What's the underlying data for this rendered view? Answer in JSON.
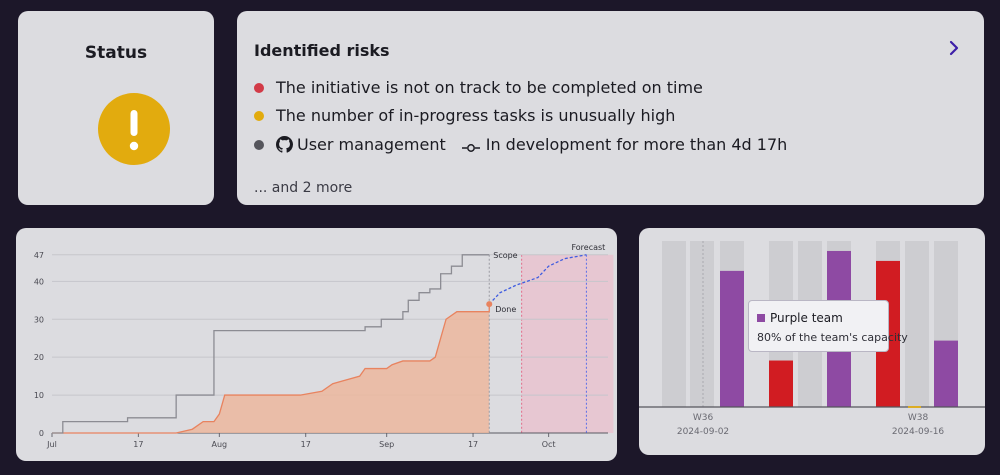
{
  "status": {
    "title": "Status",
    "icon": "warning-exclamation-icon",
    "icon_color": "#e2ab0e"
  },
  "risks": {
    "title": "Identified risks",
    "items": [
      {
        "text": "The initiative is not on track to be completed on time",
        "dot_color": "#d23a47"
      },
      {
        "text": "The number of in-progress tasks is unusually high",
        "dot_color": "#e2ab0e"
      },
      {
        "dot_color": "#55555c",
        "repo_icon": "github-icon",
        "name": "User management",
        "commit_icon": "commit-icon",
        "detail": "In development for more than 4d 17h"
      }
    ],
    "more": "... and 2 more"
  },
  "burnup": {
    "chart_data": {
      "type": "line",
      "x_tick_labels": [
        "Jul",
        "17",
        "Aug",
        "17",
        "Sep",
        "17",
        "Oct"
      ],
      "y_ticks": [
        0,
        10,
        20,
        30,
        40,
        47
      ],
      "ylim": [
        0,
        48
      ],
      "x_range": [
        "2024-07-01",
        "2024-10-12"
      ],
      "series": [
        {
          "name": "Scope",
          "color": "#8c8c93",
          "points": [
            [
              "2024-07-01",
              0
            ],
            [
              "2024-07-03",
              0
            ],
            [
              "2024-07-03",
              3
            ],
            [
              "2024-07-10",
              3
            ],
            [
              "2024-07-10",
              3
            ],
            [
              "2024-07-15",
              3
            ],
            [
              "2024-07-15",
              4
            ],
            [
              "2024-07-22",
              4
            ],
            [
              "2024-07-22",
              4
            ],
            [
              "2024-07-24",
              4
            ],
            [
              "2024-07-24",
              10
            ],
            [
              "2024-07-29",
              10
            ],
            [
              "2024-07-29",
              10
            ],
            [
              "2024-07-31",
              10
            ],
            [
              "2024-07-31",
              27
            ],
            [
              "2024-08-16",
              27
            ],
            [
              "2024-08-16",
              27
            ],
            [
              "2024-08-28",
              27
            ],
            [
              "2024-08-28",
              28
            ],
            [
              "2024-08-31",
              28
            ],
            [
              "2024-08-31",
              30
            ],
            [
              "2024-09-04",
              30
            ],
            [
              "2024-09-04",
              32
            ],
            [
              "2024-09-05",
              32
            ],
            [
              "2024-09-05",
              35
            ],
            [
              "2024-09-07",
              35
            ],
            [
              "2024-09-07",
              37
            ],
            [
              "2024-09-09",
              37
            ],
            [
              "2024-09-09",
              38
            ],
            [
              "2024-09-11",
              38
            ],
            [
              "2024-09-11",
              42
            ],
            [
              "2024-09-13",
              42
            ],
            [
              "2024-09-13",
              44
            ],
            [
              "2024-09-15",
              44
            ],
            [
              "2024-09-15",
              47
            ],
            [
              "2024-09-20",
              47
            ]
          ]
        },
        {
          "name": "Done",
          "color": "#e8835f",
          "points": [
            [
              "2024-07-01",
              0
            ],
            [
              "2024-07-24",
              0
            ],
            [
              "2024-07-27",
              1
            ],
            [
              "2024-07-29",
              3
            ],
            [
              "2024-07-31",
              3
            ],
            [
              "2024-08-01",
              5
            ],
            [
              "2024-08-02",
              10
            ],
            [
              "2024-08-16",
              10
            ],
            [
              "2024-08-20",
              11
            ],
            [
              "2024-08-22",
              13
            ],
            [
              "2024-08-27",
              15
            ],
            [
              "2024-08-28",
              17
            ],
            [
              "2024-09-01",
              17
            ],
            [
              "2024-09-02",
              18
            ],
            [
              "2024-09-04",
              19
            ],
            [
              "2024-09-09",
              19
            ],
            [
              "2024-09-10",
              20
            ],
            [
              "2024-09-11",
              25
            ],
            [
              "2024-09-12",
              30
            ],
            [
              "2024-09-14",
              32
            ],
            [
              "2024-09-20",
              32
            ],
            [
              "2024-09-20",
              34
            ]
          ]
        },
        {
          "name": "Forecast",
          "color": "#3f5ce0",
          "style": "dashed",
          "points": [
            [
              "2024-09-20",
              34
            ],
            [
              "2024-09-22",
              37
            ],
            [
              "2024-09-25",
              39
            ],
            [
              "2024-09-27",
              40
            ],
            [
              "2024-09-29",
              41
            ],
            [
              "2024-10-01",
              44
            ],
            [
              "2024-10-04",
              46
            ],
            [
              "2024-10-08",
              47
            ]
          ]
        }
      ],
      "annotations": [
        {
          "label": "Scope",
          "at": [
            "2024-09-20",
            47
          ]
        },
        {
          "label": "Done",
          "at": [
            "2024-09-20",
            34
          ]
        },
        {
          "label": "Forecast",
          "at": [
            "2024-10-08",
            47
          ]
        }
      ],
      "forecast_band": [
        "2024-09-26",
        "2024-10-13"
      ]
    }
  },
  "capacity": {
    "chart_data": {
      "type": "bar",
      "x_tick_labels": [
        {
          "week": "W36",
          "date": "2024-09-02"
        },
        {
          "week": "W38",
          "date": "2024-09-16"
        }
      ],
      "ylim": [
        0,
        100
      ],
      "slots": [
        {
          "capacity": 100
        },
        {
          "capacity": 100
        },
        {
          "value": 82,
          "color": "#8e4aa3"
        },
        {
          "value": 28,
          "color": "#d11c22"
        },
        {
          "capacity": 100
        },
        {
          "value": 94,
          "color": "#8e4aa3"
        },
        {
          "value": 88,
          "color": "#d11c22"
        },
        {
          "capacity": 100
        },
        {
          "value": 40,
          "color": "#8e4aa3"
        }
      ],
      "tooltip": {
        "team": "Purple team",
        "color": "#8e4aa3",
        "text": "80% of the team's capacity"
      }
    }
  }
}
